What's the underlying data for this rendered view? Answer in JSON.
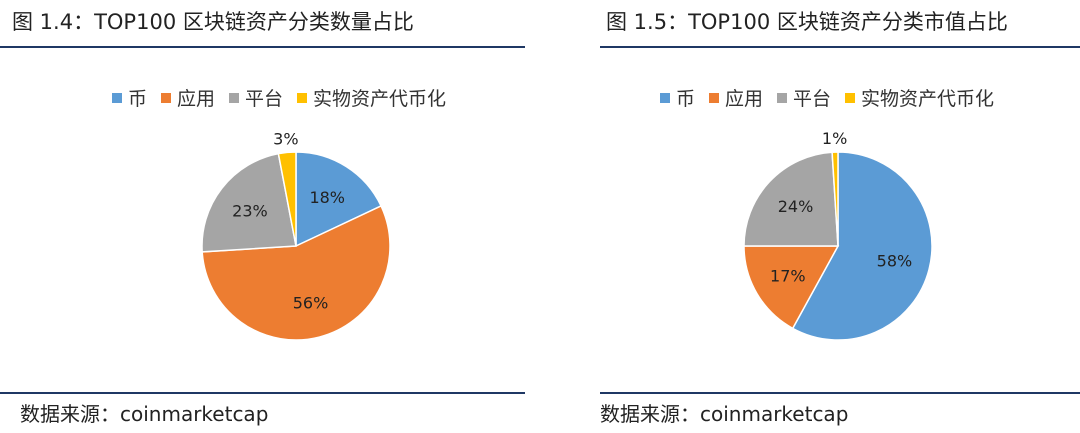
{
  "source_label": "数据来源：coinmarketcap",
  "colors": {
    "币": "#5b9bd5",
    "应用": "#ed7d31",
    "平台": "#a5a5a5",
    "实物资产代币化": "#ffc000"
  },
  "chart_data": [
    {
      "type": "pie",
      "title": "图 1.4：TOP100 区块链资产分类数量占比",
      "legend_position": "top",
      "categories": [
        "币",
        "应用",
        "平台",
        "实物资产代币化"
      ],
      "values": [
        18,
        56,
        23,
        3
      ],
      "labels": [
        "18%",
        "56%",
        "23%",
        "3%"
      ]
    },
    {
      "type": "pie",
      "title": "图 1.5：TOP100 区块链资产分类市值占比",
      "legend_position": "top",
      "categories": [
        "币",
        "应用",
        "平台",
        "实物资产代币化"
      ],
      "values": [
        58,
        17,
        24,
        1
      ],
      "labels": [
        "58%",
        "17%",
        "24%",
        "1%"
      ]
    }
  ]
}
